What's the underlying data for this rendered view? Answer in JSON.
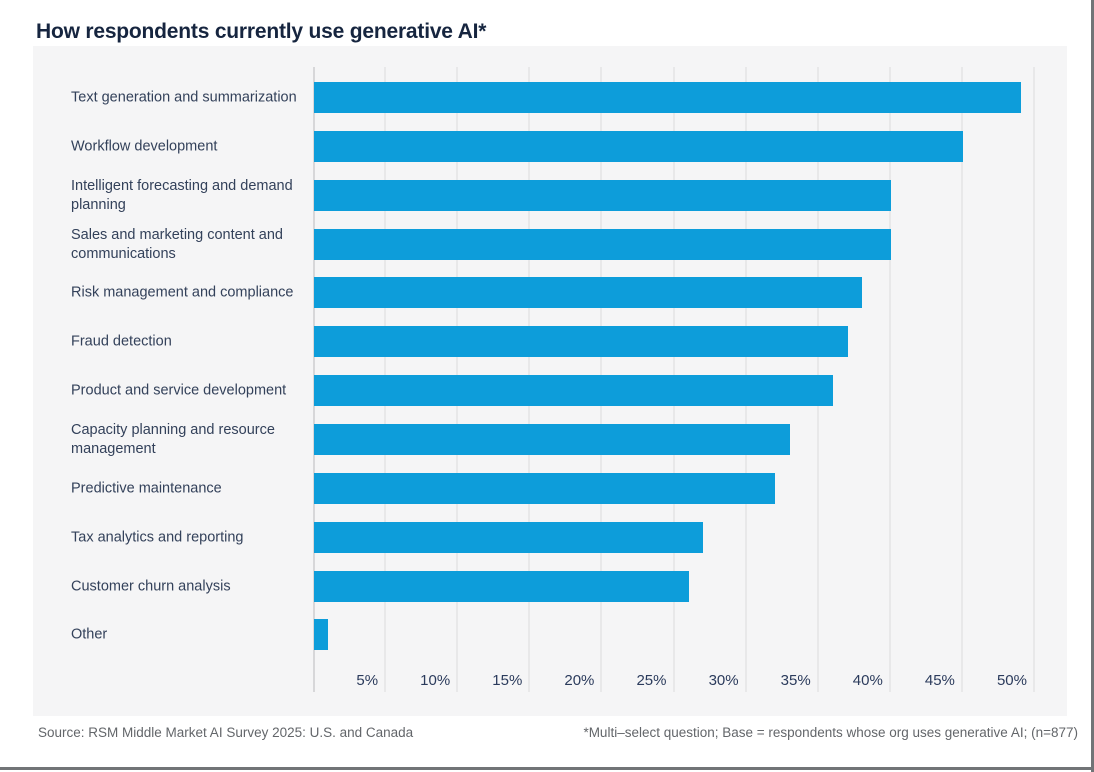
{
  "page": {
    "title": "How respondents currently use generative AI*",
    "footer": {
      "source": "Source: RSM Middle Market AI Survey 2025: U.S. and Canada",
      "note": "*Multi–select question; Base = respondents whose org uses generative AI; (n=877)"
    }
  },
  "colors": {
    "bar": "#0d9dda",
    "title": "#16253f",
    "category_label": "#33415a",
    "tick_label": "#2b3b5c",
    "panel_background": "#f5f5f6",
    "gridline": "#e8e8e9",
    "footer_text": "#63666a"
  },
  "chart_data": {
    "type": "bar",
    "orientation": "horizontal",
    "title": "How respondents currently use generative AI*",
    "categories": [
      "Text generation and summarization",
      "Workflow development",
      "Intelligent forecasting and demand planning",
      "Sales and marketing content and communications",
      "Risk management and compliance",
      "Fraud detection",
      "Product and service development",
      "Capacity planning and resource management",
      "Predictive maintenance",
      "Tax analytics and reporting",
      "Customer churn analysis",
      "Other"
    ],
    "values": [
      49,
      45,
      40,
      40,
      38,
      37,
      36,
      33,
      32,
      27,
      26,
      1
    ],
    "unit": "%",
    "xlabel": "",
    "ylabel": "",
    "xlim": [
      0,
      50
    ],
    "xticks": [
      "5%",
      "10%",
      "15%",
      "20%",
      "25%",
      "30%",
      "35%",
      "40%",
      "45%",
      "50%"
    ],
    "grid": true,
    "legend": false,
    "source": "Source: RSM Middle Market AI Survey 2025: U.S. and Canada",
    "note": "*Multi–select question; Base = respondents whose org uses generative AI; (n=877)"
  }
}
